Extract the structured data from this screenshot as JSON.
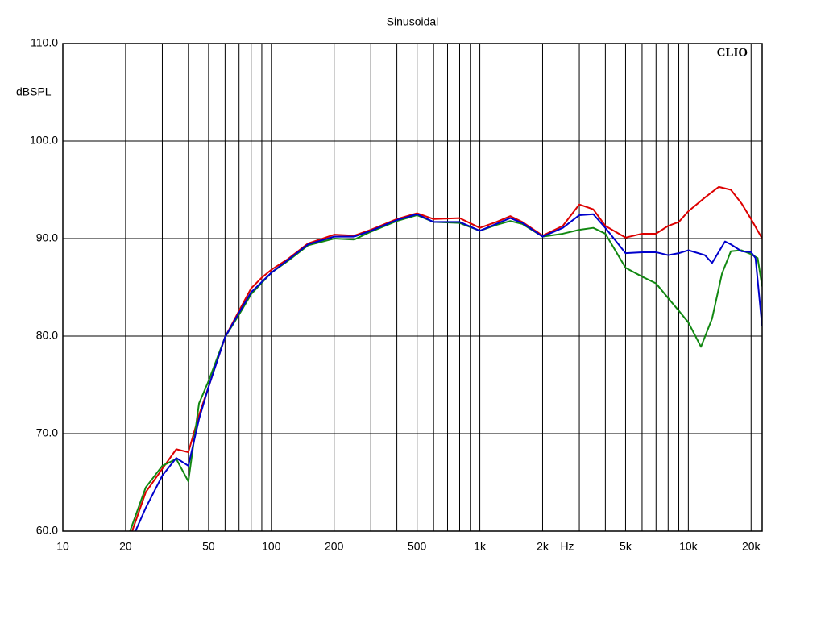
{
  "chart_data": {
    "type": "line",
    "title": "Sinusoidal",
    "y_label": "dBSPL",
    "x_label": "Hz",
    "annotation": "CLIO",
    "log_x": true,
    "grid": true,
    "xlim": [
      10,
      22600
    ],
    "ylim": [
      60,
      110
    ],
    "xticks": [
      10,
      20,
      50,
      100,
      200,
      500,
      {
        "value": 1000,
        "label": "1k"
      },
      {
        "value": 2000,
        "label": "2k"
      },
      {
        "value": 5000,
        "label": "5k"
      },
      {
        "value": 10000,
        "label": "10k"
      },
      {
        "value": 20000,
        "label": "20k"
      }
    ],
    "minor_xticks": [
      30,
      40,
      60,
      70,
      80,
      90,
      300,
      400,
      600,
      700,
      800,
      900,
      3000,
      4000,
      6000,
      7000,
      8000,
      9000
    ],
    "yticks": [
      {
        "value": 60,
        "label": "60.0"
      },
      {
        "value": 70,
        "label": "70.0"
      },
      {
        "value": 80,
        "label": "80.0"
      },
      {
        "value": 90,
        "label": "90.0"
      },
      {
        "value": 100,
        "label": "100.0"
      },
      {
        "value": 110,
        "label": "110.0"
      }
    ],
    "series": [
      {
        "color": "#dd0000",
        "x": [
          21.5,
          25,
          30,
          35,
          40,
          45,
          50,
          60,
          70,
          80,
          90,
          100,
          120,
          150,
          200,
          250,
          300,
          400,
          500,
          600,
          800,
          1000,
          1200,
          1400,
          1600,
          2000,
          2500,
          3000,
          3500,
          4000,
          5000,
          6000,
          7000,
          8000,
          9000,
          10000,
          12000,
          14000,
          16000,
          18000,
          20000,
          22600
        ],
        "values": [
          60,
          64,
          66.4,
          68.4,
          68.1,
          71.9,
          74.8,
          79.9,
          82.6,
          84.9,
          86,
          86.8,
          87.9,
          89.5,
          90.4,
          90.3,
          90.9,
          92,
          92.6,
          92,
          92.1,
          91.1,
          91.7,
          92.3,
          91.7,
          90.3,
          91.3,
          93.5,
          93,
          91.3,
          90.1,
          90.5,
          90.5,
          91.3,
          91.7,
          92.8,
          94.2,
          95.3,
          95,
          93.6,
          92,
          90
        ]
      },
      {
        "color": "#118811",
        "x": [
          21,
          25,
          30,
          35,
          40,
          45,
          50,
          60,
          70,
          80,
          100,
          120,
          150,
          200,
          250,
          300,
          400,
          500,
          600,
          800,
          1000,
          1200,
          1400,
          1600,
          2000,
          2500,
          3000,
          3500,
          4000,
          5000,
          6000,
          7000,
          8000,
          9000,
          10000,
          11500,
          13000,
          14500,
          16000,
          18000,
          20000,
          21500,
          22600
        ],
        "values": [
          60,
          64.5,
          66.7,
          67.4,
          65.1,
          73.1,
          75.4,
          79.9,
          82.2,
          84.3,
          86.5,
          87.7,
          89.3,
          90,
          89.9,
          90.7,
          91.8,
          92.4,
          91.7,
          91.6,
          90.8,
          91.4,
          91.8,
          91.5,
          90.2,
          90.5,
          90.9,
          91.1,
          90.5,
          87,
          86.1,
          85.4,
          83.9,
          82.6,
          81.4,
          78.9,
          81.8,
          86.4,
          88.7,
          88.8,
          88.4,
          88,
          85.1
        ]
      },
      {
        "color": "#0000cc",
        "x": [
          22.3,
          25,
          30,
          35,
          40,
          45,
          50,
          60,
          70,
          80,
          100,
          120,
          150,
          200,
          250,
          300,
          400,
          500,
          600,
          800,
          1000,
          1200,
          1400,
          1600,
          2000,
          2500,
          3000,
          3500,
          4000,
          5000,
          6000,
          7000,
          8000,
          9000,
          10000,
          12000,
          13000,
          15000,
          16000,
          18000,
          20000,
          21000,
          22600
        ],
        "values": [
          60,
          62.4,
          65.7,
          67.5,
          66.7,
          71.5,
          74.8,
          79.9,
          82.4,
          84.5,
          86.5,
          87.8,
          89.4,
          90.2,
          90.2,
          90.8,
          91.9,
          92.5,
          91.7,
          91.7,
          90.8,
          91.5,
          92.1,
          91.6,
          90.2,
          91.1,
          92.4,
          92.5,
          91.1,
          88.5,
          88.6,
          88.6,
          88.3,
          88.5,
          88.8,
          88.3,
          87.5,
          89.7,
          89.4,
          88.7,
          88.6,
          88,
          81
        ]
      }
    ]
  }
}
